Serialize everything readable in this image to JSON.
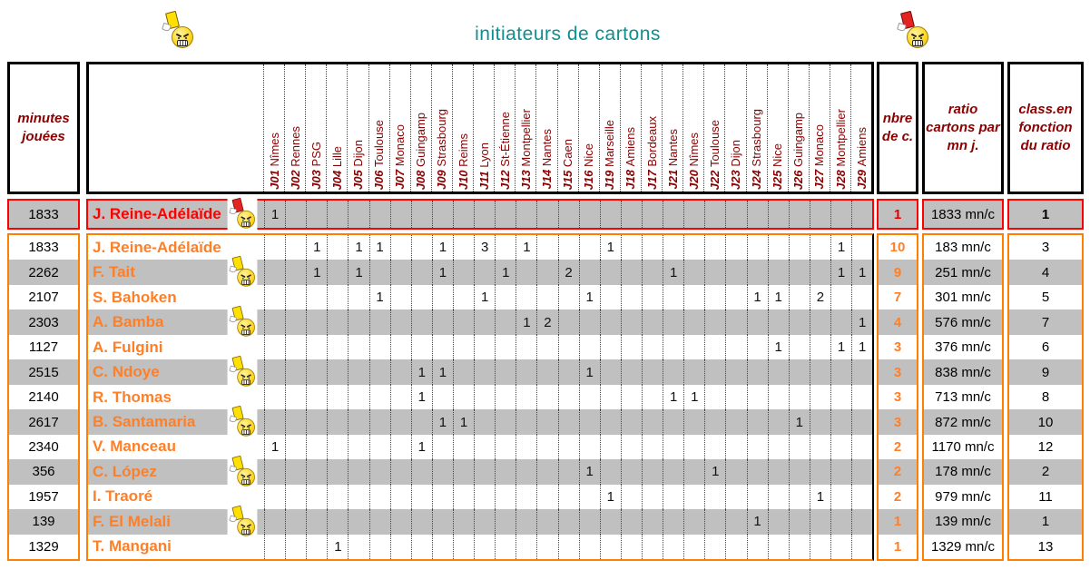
{
  "title": "initiateurs de cartons",
  "icons": {
    "top_left": "yellow-card-smiley",
    "top_right": "red-card-smiley",
    "row_marker": "yellow-card-smiley",
    "highlight_marker": "red-card-smiley"
  },
  "header": {
    "minutes_label": "minutes jouées",
    "nbre_label": "nbre de c.",
    "ratio_label": "ratio cartons par mn j.",
    "class_label": "class.en fonction du ratio"
  },
  "colors": {
    "title_teal": "#0f8e8e",
    "header_dark_red": "#8b0000",
    "player_orange": "#ff7f27",
    "group_border_orange": "#ff8000",
    "highlight_red": "#ff0000",
    "stripe_gray": "#c0c0c0",
    "yellow_card": "#ffe000",
    "red_card": "#e32222"
  },
  "chart_data": {
    "type": "table",
    "title": "initiateurs de cartons",
    "columns": [
      {
        "code": "J01",
        "opponent": "Nîmes"
      },
      {
        "code": "J02",
        "opponent": "Rennes"
      },
      {
        "code": "J03",
        "opponent": "PSG"
      },
      {
        "code": "J04",
        "opponent": "Lille"
      },
      {
        "code": "J05",
        "opponent": "Dijon"
      },
      {
        "code": "J06",
        "opponent": "Toulouse"
      },
      {
        "code": "J07",
        "opponent": "Monaco"
      },
      {
        "code": "J08",
        "opponent": "Guingamp"
      },
      {
        "code": "J09",
        "opponent": "Strasbourg"
      },
      {
        "code": "J10",
        "opponent": "Reims"
      },
      {
        "code": "J11",
        "opponent": "Lyon"
      },
      {
        "code": "J12",
        "opponent": "St-Étienne"
      },
      {
        "code": "J13",
        "opponent": "Montpellier"
      },
      {
        "code": "J14",
        "opponent": "Nantes"
      },
      {
        "code": "J15",
        "opponent": "Caen"
      },
      {
        "code": "J16",
        "opponent": "Nice"
      },
      {
        "code": "J19",
        "opponent": "Marseille"
      },
      {
        "code": "J18",
        "opponent": "Amiens"
      },
      {
        "code": "J17",
        "opponent": "Bordeaux"
      },
      {
        "code": "J21",
        "opponent": "Nantes"
      },
      {
        "code": "J20",
        "opponent": "Nîmes"
      },
      {
        "code": "J22",
        "opponent": "Toulouse"
      },
      {
        "code": "J23",
        "opponent": "Dijon"
      },
      {
        "code": "J24",
        "opponent": "Strasbourg"
      },
      {
        "code": "J25",
        "opponent": "Nice"
      },
      {
        "code": "J26",
        "opponent": "Guingamp"
      },
      {
        "code": "J27",
        "opponent": "Monaco"
      },
      {
        "code": "J28",
        "opponent": "Montpellier"
      },
      {
        "code": "J29",
        "opponent": "Amiens"
      }
    ],
    "highlight_row": {
      "minutes": "1833",
      "name": "J. Reine-Adélaïde",
      "icon": "red",
      "marks": {
        "1": "1"
      },
      "nbre": "1",
      "ratio": "1833 mn/c",
      "rank": "1"
    },
    "rows": [
      {
        "minutes": "1833",
        "name": "J. Reine-Adélaïde",
        "icon": false,
        "marks": {
          "3": "1",
          "5": "1",
          "6": "1",
          "9": "1",
          "11": "3",
          "13": "1",
          "17": "1",
          "28": "1"
        },
        "nbre": "10",
        "ratio": "183 mn/c",
        "rank": "3"
      },
      {
        "minutes": "2262",
        "name": "F. Tait",
        "icon": true,
        "marks": {
          "3": "1",
          "5": "1",
          "9": "1",
          "12": "1",
          "15": "2",
          "20": "1",
          "28": "1",
          "29": "1"
        },
        "nbre": "9",
        "ratio": "251 mn/c",
        "rank": "4"
      },
      {
        "minutes": "2107",
        "name": "S. Bahoken",
        "icon": false,
        "marks": {
          "6": "1",
          "11": "1",
          "16": "1",
          "24": "1",
          "25": "1",
          "27": "2"
        },
        "nbre": "7",
        "ratio": "301 mn/c",
        "rank": "5"
      },
      {
        "minutes": "2303",
        "name": "A. Bamba",
        "icon": true,
        "marks": {
          "13": "1",
          "14": "2",
          "29": "1"
        },
        "nbre": "4",
        "ratio": "576 mn/c",
        "rank": "7"
      },
      {
        "minutes": "1127",
        "name": "A. Fulgini",
        "icon": false,
        "marks": {
          "25": "1",
          "28": "1",
          "29": "1"
        },
        "nbre": "3",
        "ratio": "376 mn/c",
        "rank": "6"
      },
      {
        "minutes": "2515",
        "name": "C. Ndoye",
        "icon": true,
        "marks": {
          "8": "1",
          "9": "1",
          "16": "1"
        },
        "nbre": "3",
        "ratio": "838 mn/c",
        "rank": "9"
      },
      {
        "minutes": "2140",
        "name": "R. Thomas",
        "icon": false,
        "marks": {
          "8": "1",
          "20": "1",
          "21": "1"
        },
        "nbre": "3",
        "ratio": "713 mn/c",
        "rank": "8"
      },
      {
        "minutes": "2617",
        "name": "B. Santamaria",
        "icon": true,
        "marks": {
          "9": "1",
          "10": "1",
          "26": "1"
        },
        "nbre": "3",
        "ratio": "872 mn/c",
        "rank": "10"
      },
      {
        "minutes": "2340",
        "name": "V. Manceau",
        "icon": false,
        "marks": {
          "1": "1",
          "8": "1"
        },
        "nbre": "2",
        "ratio": "1170 mn/c",
        "rank": "12"
      },
      {
        "minutes": "356",
        "name": "C. López",
        "icon": true,
        "marks": {
          "16": "1",
          "22": "1"
        },
        "nbre": "2",
        "ratio": "178 mn/c",
        "rank": "2"
      },
      {
        "minutes": "1957",
        "name": "I. Traoré",
        "icon": false,
        "marks": {
          "17": "1",
          "27": "1"
        },
        "nbre": "2",
        "ratio": "979 mn/c",
        "rank": "11"
      },
      {
        "minutes": "139",
        "name": "F. El Melali",
        "icon": true,
        "marks": {
          "24": "1"
        },
        "nbre": "1",
        "ratio": "139 mn/c",
        "rank": "1"
      },
      {
        "minutes": "1329",
        "name": "T. Mangani",
        "icon": false,
        "marks": {
          "4": "1"
        },
        "nbre": "1",
        "ratio": "1329 mn/c",
        "rank": "13"
      }
    ]
  }
}
